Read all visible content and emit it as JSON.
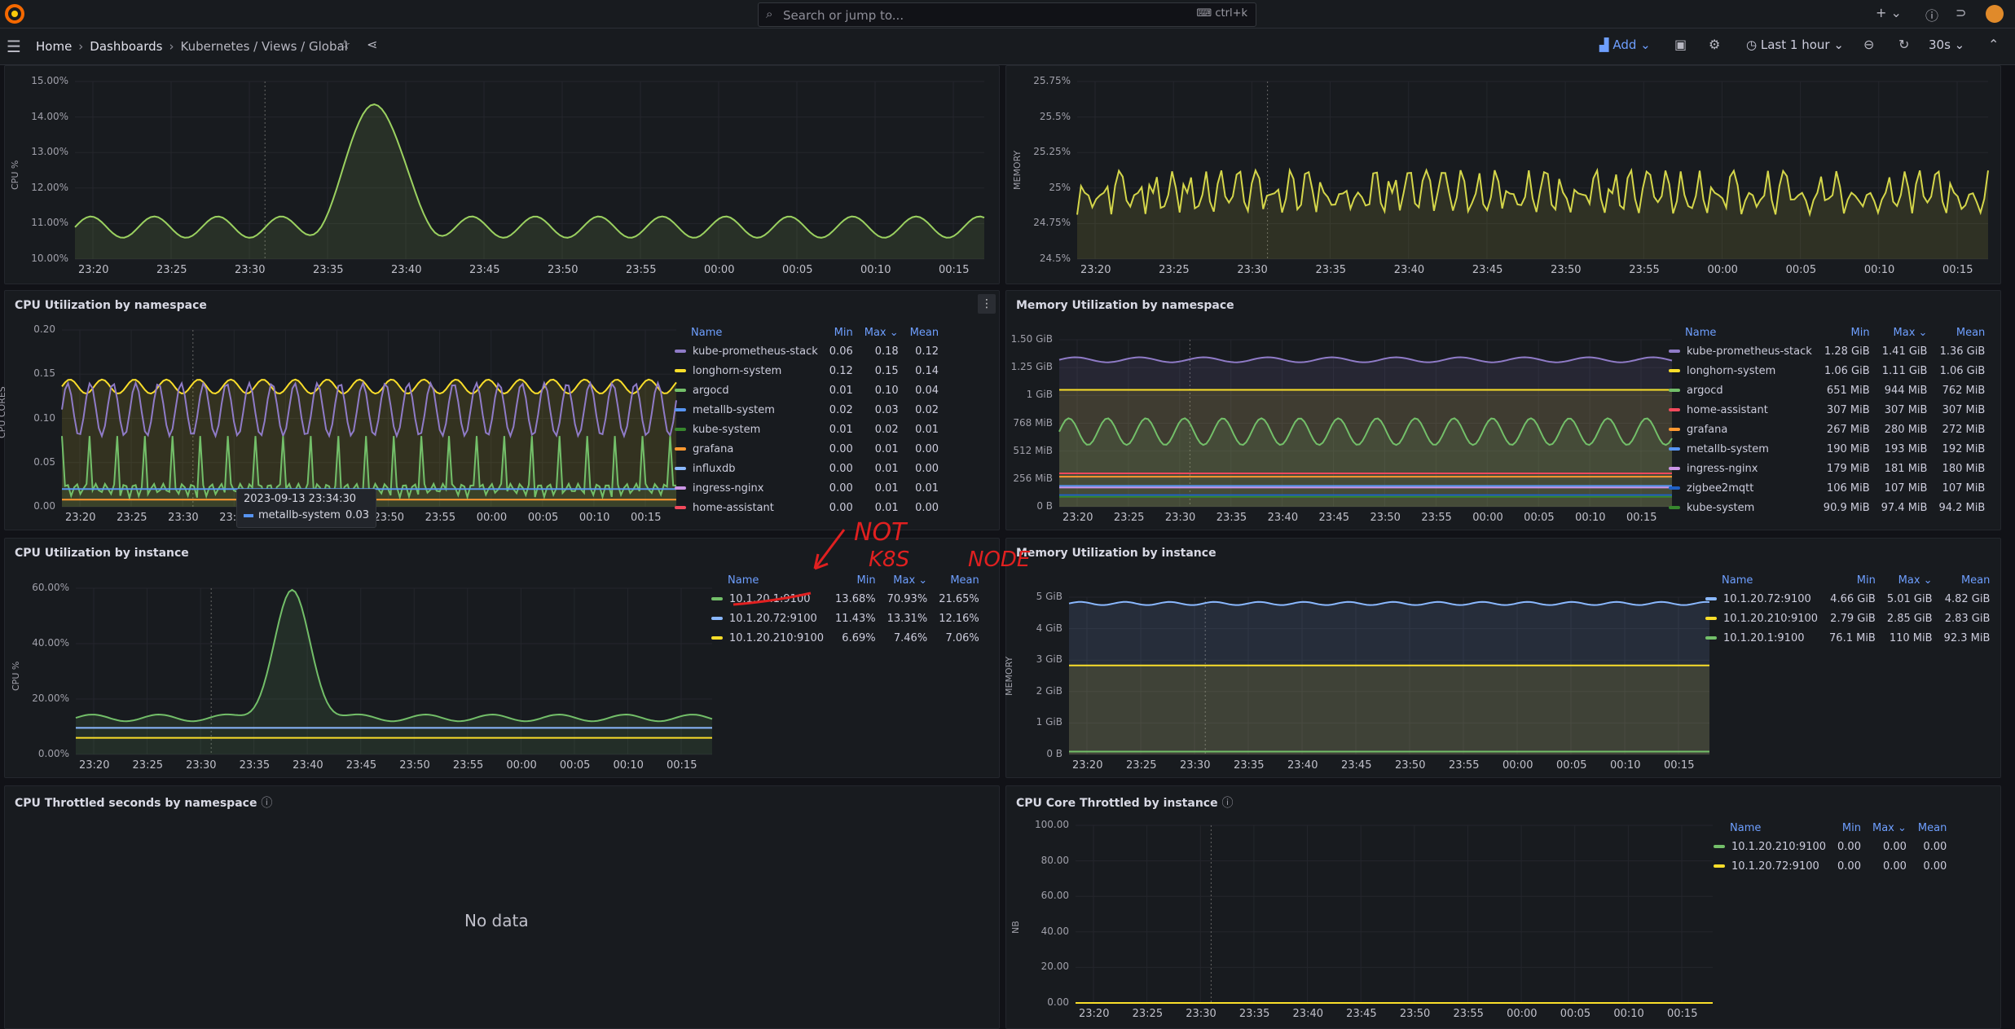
{
  "topbar": {
    "search_placeholder": "Search or jump to...",
    "search_shortcut": "ctrl+k"
  },
  "nav": {
    "breadcrumbs": [
      "Home",
      "Dashboards",
      "Kubernetes / Views / Global"
    ],
    "add_label": "Add",
    "time_range": "Last 1 hour",
    "refresh_interval": "30s"
  },
  "time_axis": [
    "23:20",
    "23:25",
    "23:30",
    "23:35",
    "23:40",
    "23:45",
    "23:50",
    "23:55",
    "00:00",
    "00:05",
    "00:10",
    "00:15"
  ],
  "panels": {
    "cpu_top": {
      "y_title": "CPU %",
      "y_ticks": [
        "15.00%",
        "14.00%",
        "13.00%",
        "12.00%",
        "11.00%",
        "10.00%"
      ]
    },
    "mem_top": {
      "y_title": "MEMORY",
      "y_ticks": [
        "25.75%",
        "25.5%",
        "25.25%",
        "25%",
        "24.75%",
        "24.5%"
      ]
    },
    "cpu_ns": {
      "title": "CPU Utilization by namespace",
      "y_title": "CPU CORES",
      "y_ticks": [
        "0.20",
        "0.15",
        "0.10",
        "0.05",
        "0.00"
      ],
      "legend_headers": [
        "Name",
        "Min",
        "Max",
        "Mean"
      ],
      "legend": [
        {
          "name": "kube-prometheus-stack",
          "min": "0.06",
          "max": "0.18",
          "mean": "0.12",
          "color": "#8f7bc7"
        },
        {
          "name": "longhorn-system",
          "min": "0.12",
          "max": "0.15",
          "mean": "0.14",
          "color": "#fade2a"
        },
        {
          "name": "argocd",
          "min": "0.01",
          "max": "0.10",
          "mean": "0.04",
          "color": "#73bf69"
        },
        {
          "name": "metallb-system",
          "min": "0.02",
          "max": "0.03",
          "mean": "0.02",
          "color": "#5794f2"
        },
        {
          "name": "kube-system",
          "min": "0.01",
          "max": "0.02",
          "mean": "0.01",
          "color": "#37872d"
        },
        {
          "name": "grafana",
          "min": "0.00",
          "max": "0.01",
          "mean": "0.00",
          "color": "#ff9830"
        },
        {
          "name": "influxdb",
          "min": "0.00",
          "max": "0.01",
          "mean": "0.00",
          "color": "#8ab8ff"
        },
        {
          "name": "ingress-nginx",
          "min": "0.00",
          "max": "0.01",
          "mean": "0.01",
          "color": "#ca95e5"
        },
        {
          "name": "home-assistant",
          "min": "0.00",
          "max": "0.01",
          "mean": "0.00",
          "color": "#f2495c"
        }
      ],
      "tooltip_time": "2023-09-13 23:34:30",
      "tooltip_series": "metallb-system",
      "tooltip_value": "0.03"
    },
    "mem_ns": {
      "title": "Memory Utilization by namespace",
      "y_ticks": [
        "1.50 GiB",
        "1.25 GiB",
        "1 GiB",
        "768 MiB",
        "512 MiB",
        "256 MiB",
        "0 B"
      ],
      "legend_headers": [
        "Name",
        "Min",
        "Max",
        "Mean"
      ],
      "legend": [
        {
          "name": "kube-prometheus-stack",
          "min": "1.28 GiB",
          "max": "1.41 GiB",
          "mean": "1.36 GiB",
          "color": "#8f7bc7"
        },
        {
          "name": "longhorn-system",
          "min": "1.06 GiB",
          "max": "1.11 GiB",
          "mean": "1.06 GiB",
          "color": "#fade2a"
        },
        {
          "name": "argocd",
          "min": "651 MiB",
          "max": "944 MiB",
          "mean": "762 MiB",
          "color": "#73bf69"
        },
        {
          "name": "home-assistant",
          "min": "307 MiB",
          "max": "307 MiB",
          "mean": "307 MiB",
          "color": "#f2495c"
        },
        {
          "name": "grafana",
          "min": "267 MiB",
          "max": "280 MiB",
          "mean": "272 MiB",
          "color": "#ff9830"
        },
        {
          "name": "metallb-system",
          "min": "190 MiB",
          "max": "193 MiB",
          "mean": "192 MiB",
          "color": "#5794f2"
        },
        {
          "name": "ingress-nginx",
          "min": "179 MiB",
          "max": "181 MiB",
          "mean": "180 MiB",
          "color": "#ca95e5"
        },
        {
          "name": "zigbee2mqtt",
          "min": "106 MiB",
          "max": "107 MiB",
          "mean": "107 MiB",
          "color": "#1f60c4"
        },
        {
          "name": "kube-system",
          "min": "90.9 MiB",
          "max": "97.4 MiB",
          "mean": "94.2 MiB",
          "color": "#37872d"
        }
      ]
    },
    "cpu_inst": {
      "title": "CPU Utilization by instance",
      "y_title": "CPU %",
      "y_ticks": [
        "60.00%",
        "40.00%",
        "20.00%",
        "0.00%"
      ],
      "legend_headers": [
        "Name",
        "Min",
        "Max",
        "Mean"
      ],
      "legend": [
        {
          "name": "10.1.20.1:9100",
          "min": "13.68%",
          "max": "70.93%",
          "mean": "21.65%",
          "color": "#73bf69"
        },
        {
          "name": "10.1.20.72:9100",
          "min": "11.43%",
          "max": "13.31%",
          "mean": "12.16%",
          "color": "#8ab8ff"
        },
        {
          "name": "10.1.20.210:9100",
          "min": "6.69%",
          "max": "7.46%",
          "mean": "7.06%",
          "color": "#fade2a"
        }
      ]
    },
    "mem_inst": {
      "title": "Memory Utilization by instance",
      "y_title": "MEMORY",
      "y_ticks": [
        "5 GiB",
        "4 GiB",
        "3 GiB",
        "2 GiB",
        "1 GiB",
        "0 B"
      ],
      "legend_headers": [
        "Name",
        "Min",
        "Max",
        "Mean"
      ],
      "legend": [
        {
          "name": "10.1.20.72:9100",
          "min": "4.66 GiB",
          "max": "5.01 GiB",
          "mean": "4.82 GiB",
          "color": "#8ab8ff"
        },
        {
          "name": "10.1.20.210:9100",
          "min": "2.79 GiB",
          "max": "2.85 GiB",
          "mean": "2.83 GiB",
          "color": "#fade2a"
        },
        {
          "name": "10.1.20.1:9100",
          "min": "76.1 MiB",
          "max": "110 MiB",
          "mean": "92.3 MiB",
          "color": "#73bf69"
        }
      ]
    },
    "cpu_throttle": {
      "title": "CPU Throttled seconds by namespace",
      "no_data": "No data"
    },
    "core_throttle": {
      "title": "CPU Core Throttled by instance",
      "y_title": "NB",
      "y_ticks": [
        "100.00",
        "80.00",
        "60.00",
        "40.00",
        "20.00",
        "0.00"
      ],
      "legend_headers": [
        "Name",
        "Min",
        "Max",
        "Mean"
      ],
      "legend": [
        {
          "name": "10.1.20.210:9100",
          "min": "0.00",
          "max": "0.00",
          "mean": "0.00",
          "color": "#73bf69"
        },
        {
          "name": "10.1.20.72:9100",
          "min": "0.00",
          "max": "0.00",
          "mean": "0.00",
          "color": "#fade2a"
        }
      ]
    }
  },
  "annotation": {
    "line1": "NOT",
    "line2": "K8S",
    "line3": "NODE"
  }
}
